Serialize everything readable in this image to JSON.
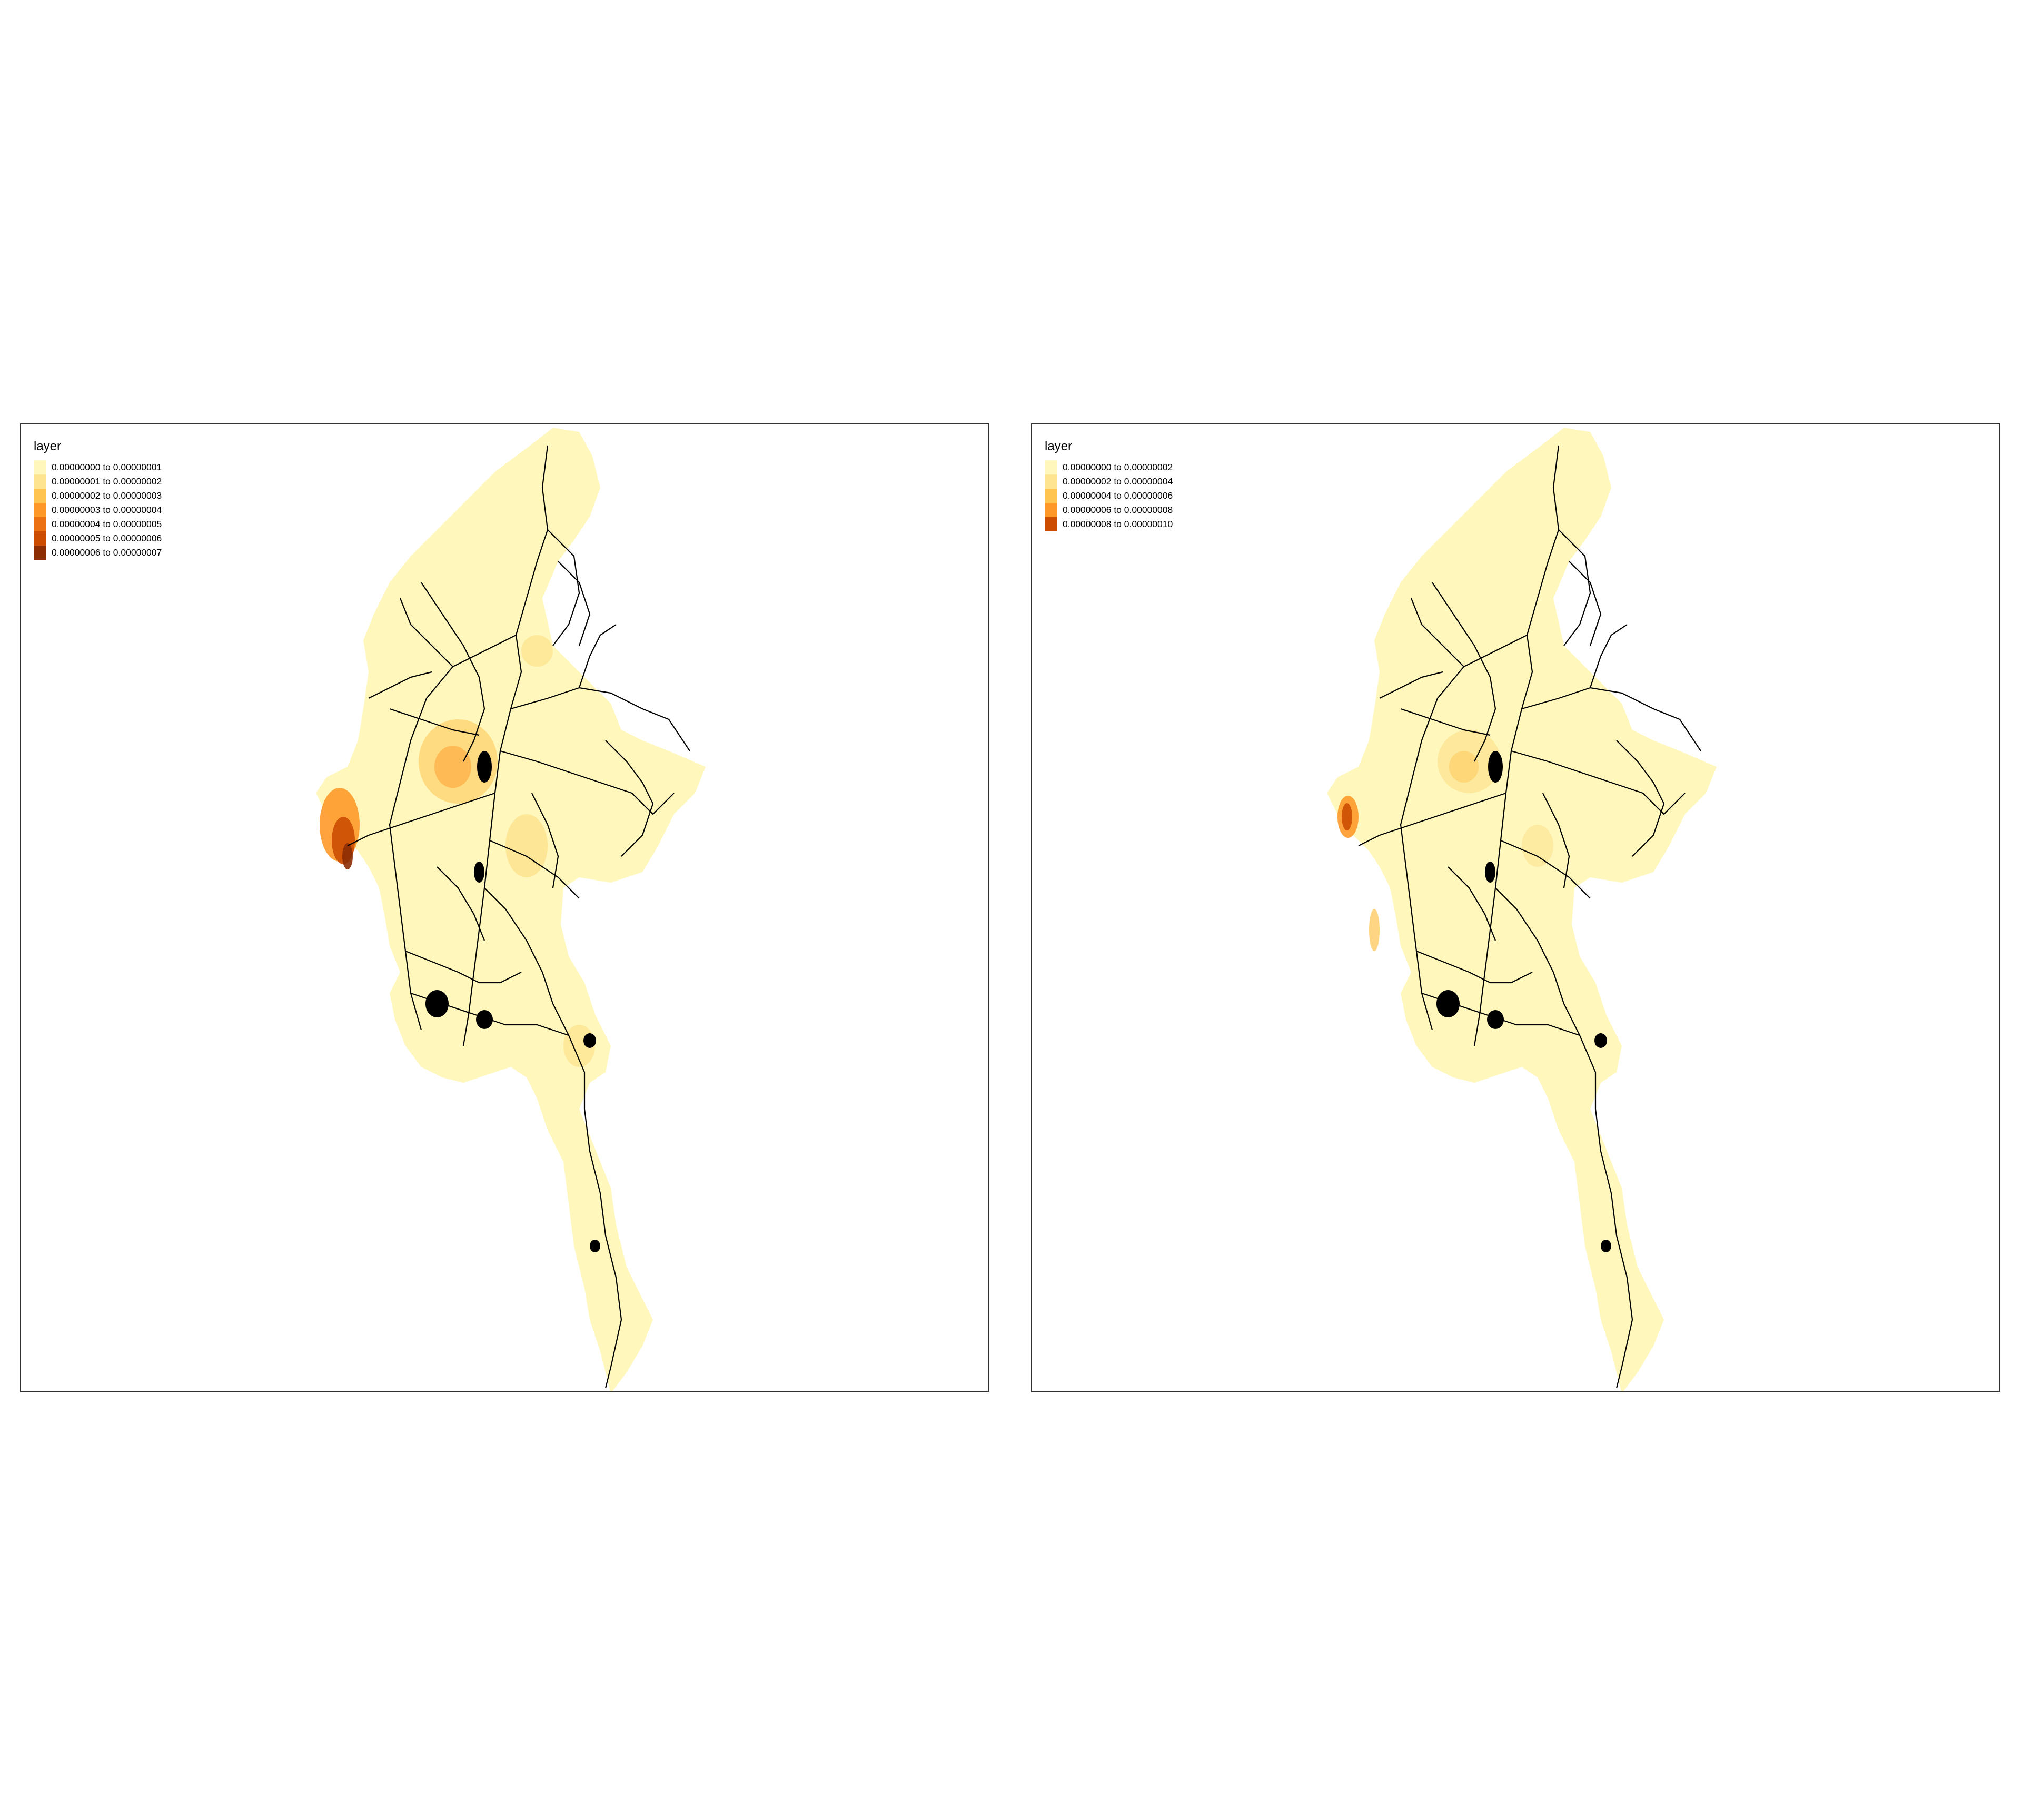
{
  "maps": [
    {
      "legend": {
        "title": "layer",
        "items": [
          {
            "label": "0.00000000 to 0.00000001",
            "color": "#fff7bc"
          },
          {
            "label": "0.00000001 to 0.00000002",
            "color": "#fee391"
          },
          {
            "label": "0.00000002 to 0.00000003",
            "color": "#fec44f"
          },
          {
            "label": "0.00000003 to 0.00000004",
            "color": "#fe9929"
          },
          {
            "label": "0.00000004 to 0.00000005",
            "color": "#ec7014"
          },
          {
            "label": "0.00000005 to 0.00000006",
            "color": "#cc4c02"
          },
          {
            "label": "0.00000006 to 0.00000007",
            "color": "#8c2d04"
          }
        ]
      }
    },
    {
      "legend": {
        "title": "layer",
        "items": [
          {
            "label": "0.00000000 to 0.00000002",
            "color": "#fff7bc"
          },
          {
            "label": "0.00000002 to 0.00000004",
            "color": "#fee391"
          },
          {
            "label": "0.00000004 to 0.00000006",
            "color": "#fec44f"
          },
          {
            "label": "0.00000006 to 0.00000008",
            "color": "#fe9929"
          },
          {
            "label": "0.00000008 to 0.00000010",
            "color": "#cc4c02"
          }
        ]
      }
    }
  ]
}
